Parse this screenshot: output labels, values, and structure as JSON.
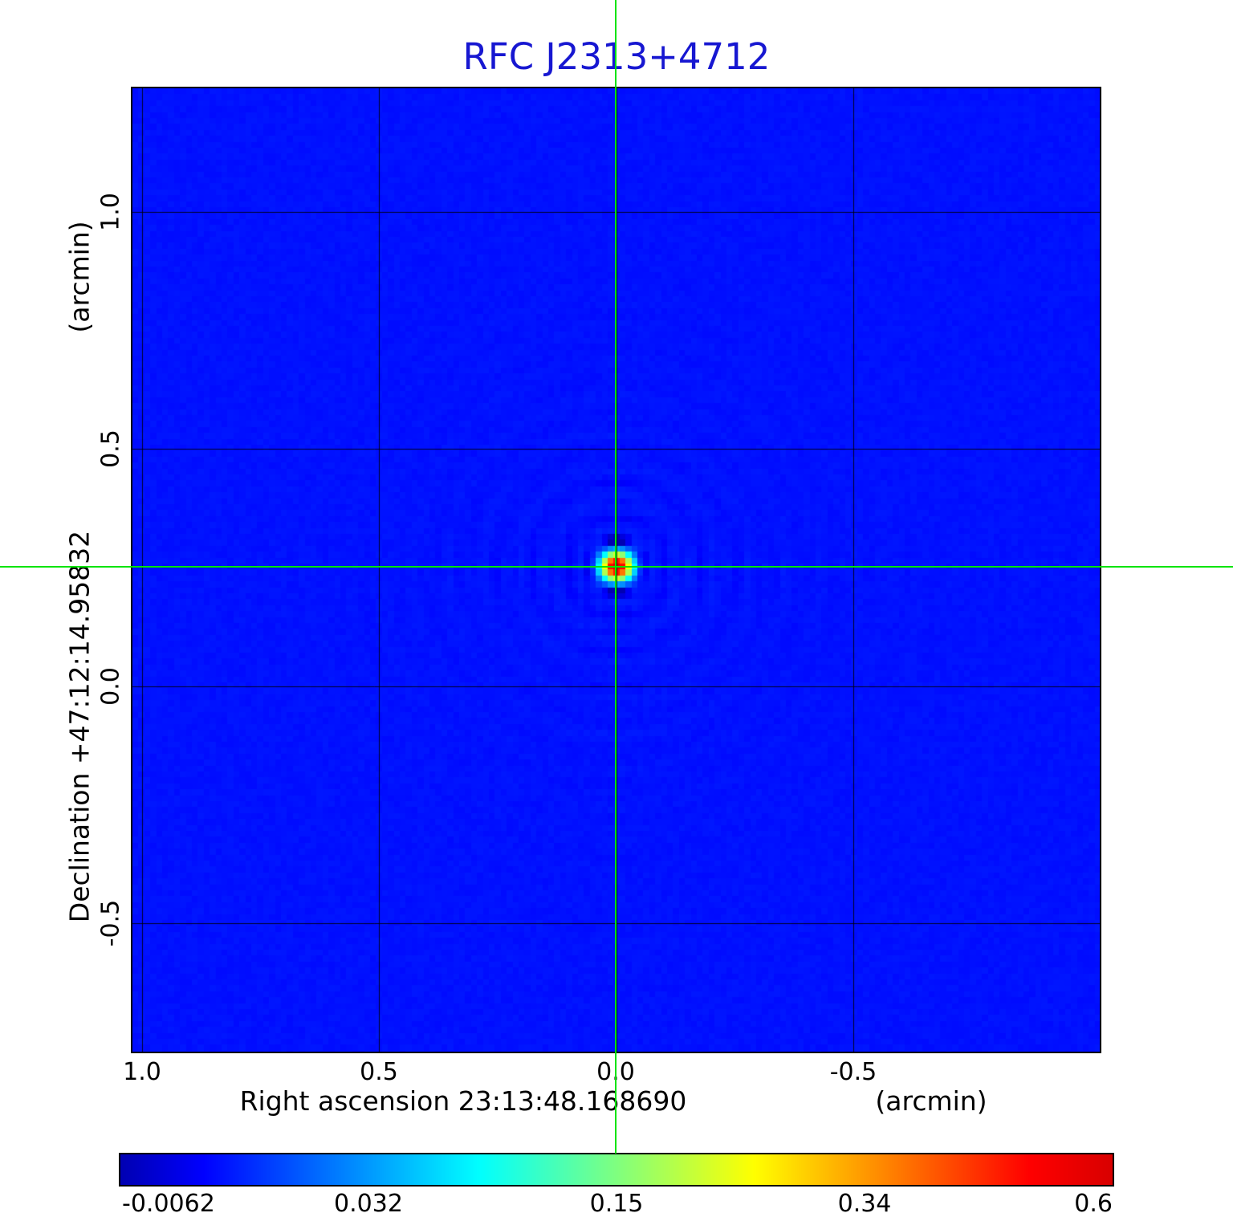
{
  "title": {
    "text": "RFC J2313+4712",
    "color": "#1717d1"
  },
  "axes": {
    "y_unit_label": "(arcmin)",
    "y_axis_label": "Declination  +47:12:14.95832",
    "y_ticks": [
      "1.0",
      "0.5",
      "0.0",
      "-0.5"
    ],
    "x_axis_label": "Right ascension  23:13:48.168690",
    "x_unit_label": "(arcmin)",
    "x_ticks": [
      "1.0",
      "0.5",
      "0.0",
      "-0.5"
    ]
  },
  "colorbar": {
    "tick_labels": [
      "-0.0062",
      "0.032",
      "0.15",
      "0.34",
      "0.6"
    ],
    "colormap": "jet"
  },
  "chart_data": {
    "type": "heatmap",
    "title": "RFC J2313+4712",
    "xlabel": "Right ascension 23:13:48.168690 (arcmin)",
    "ylabel": "Declination +47:12:14.95832 (arcmin)",
    "xlim": [
      1.02,
      -1.02
    ],
    "ylim": [
      -0.77,
      1.26
    ],
    "x_ticks": [
      1.0,
      0.5,
      0.0,
      -0.5
    ],
    "y_ticks": [
      1.0,
      0.5,
      0.0,
      -0.5
    ],
    "grid": true,
    "grid_color": "#000000",
    "colormap": "jet",
    "color_scale": "sqrt",
    "value_min": -0.0062,
    "value_max": 0.6,
    "colorbar_ticks": [
      -0.0062,
      0.032,
      0.15,
      0.34,
      0.6
    ],
    "background_value": 0.0,
    "crosshair": {
      "x": 0.0,
      "y": 0.25,
      "color": "#00e400"
    },
    "source": {
      "x": 0.0,
      "y": 0.25,
      "peak": 0.6,
      "fwhm_arcmin": 0.04
    }
  }
}
